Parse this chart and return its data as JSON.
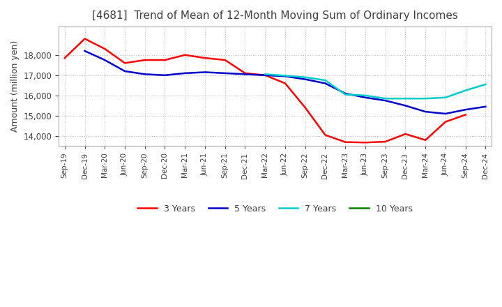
{
  "title": "[4681]  Trend of Mean of 12-Month Moving Sum of Ordinary Incomes",
  "ylabel": "Amount (million yen)",
  "ylim": [
    13500,
    19400
  ],
  "yticks": [
    14000,
    15000,
    16000,
    17000,
    18000
  ],
  "background_color": "#ffffff",
  "grid_color": "#bbbbbb",
  "title_color": "#404040",
  "x_labels": [
    "Sep-19",
    "Dec-19",
    "Mar-20",
    "Jun-20",
    "Sep-20",
    "Dec-20",
    "Mar-21",
    "Jun-21",
    "Sep-21",
    "Dec-21",
    "Mar-22",
    "Jun-22",
    "Sep-22",
    "Dec-22",
    "Mar-23",
    "Jun-23",
    "Sep-23",
    "Dec-23",
    "Mar-24",
    "Jun-24",
    "Sep-24",
    "Dec-24"
  ],
  "line_3y": {
    "x": [
      0,
      1,
      2,
      3,
      4,
      5,
      6,
      7,
      8,
      9,
      10,
      11,
      12,
      13,
      14,
      15,
      16,
      17,
      18,
      19,
      20
    ],
    "y": [
      17850,
      18800,
      18300,
      17600,
      17750,
      17750,
      18000,
      17850,
      17750,
      17100,
      17000,
      16600,
      15400,
      14050,
      13700,
      13680,
      13720,
      14100,
      13800,
      14700,
      15050
    ]
  },
  "line_5y": {
    "x": [
      1,
      2,
      3,
      4,
      5,
      6,
      7,
      8,
      9,
      10,
      11,
      12,
      13,
      14,
      15,
      16,
      17,
      18,
      19,
      20,
      21
    ],
    "y": [
      18200,
      17750,
      17200,
      17050,
      17000,
      17100,
      17150,
      17100,
      17050,
      17000,
      16950,
      16800,
      16600,
      16100,
      15900,
      15750,
      15500,
      15200,
      15100,
      15300,
      15450
    ]
  },
  "line_7y": {
    "x": [
      10,
      11,
      12,
      13,
      14,
      15,
      16,
      17,
      18,
      19,
      20,
      21
    ],
    "y": [
      17050,
      16980,
      16900,
      16750,
      16050,
      16000,
      15850,
      15850,
      15850,
      15900,
      16250,
      16550
    ]
  },
  "line_10y": {
    "x": [],
    "y": []
  },
  "colors": {
    "3y": "#ff0000",
    "5y": "#0000cc",
    "7y": "#00cccc",
    "10y": "#008000"
  },
  "legend_labels": [
    "3 Years",
    "5 Years",
    "7 Years",
    "10 Years"
  ]
}
